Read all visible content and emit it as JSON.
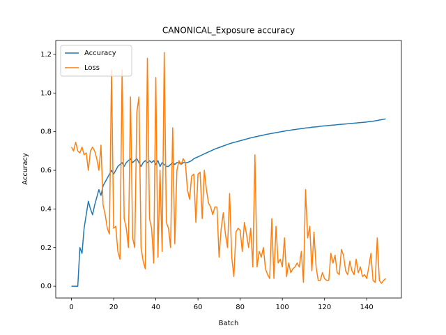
{
  "chart_data": {
    "type": "line",
    "title": "CANONICAL_Exposure accuracy",
    "xlabel": "Batch",
    "ylabel": "Accuracy",
    "x": [
      0,
      1,
      2,
      3,
      4,
      5,
      6,
      7,
      8,
      9,
      10,
      11,
      12,
      13,
      14,
      15,
      16,
      17,
      18,
      19,
      20,
      21,
      22,
      23,
      24,
      25,
      26,
      27,
      28,
      29,
      30,
      31,
      32,
      33,
      34,
      35,
      36,
      37,
      38,
      39,
      40,
      41,
      42,
      43,
      44,
      45,
      46,
      47,
      48,
      49,
      50,
      51,
      52,
      53,
      54,
      55,
      56,
      57,
      58,
      59,
      60,
      61,
      62,
      63,
      64,
      65,
      66,
      67,
      68,
      69,
      70,
      71,
      72,
      73,
      74,
      75,
      76,
      77,
      78,
      79,
      80,
      81,
      82,
      83,
      84,
      85,
      86,
      87,
      88,
      89,
      90,
      91,
      92,
      93,
      94,
      95,
      96,
      97,
      98,
      99,
      100,
      101,
      102,
      103,
      104,
      105,
      106,
      107,
      108,
      109,
      110,
      111,
      112,
      113,
      114,
      115,
      116,
      117,
      118,
      119,
      120,
      121,
      122,
      123,
      124,
      125,
      126,
      127,
      128,
      129,
      130,
      131,
      132,
      133,
      134,
      135,
      136,
      137,
      138,
      139,
      140,
      141,
      142,
      143,
      144,
      145,
      146,
      147,
      148,
      149
    ],
    "series": [
      {
        "name": "Accuracy",
        "color": "#1f77b4",
        "values": [
          0,
          0,
          0,
          0,
          0.2,
          0.17,
          0.3,
          0.37,
          0.44,
          0.4,
          0.37,
          0.42,
          0.46,
          0.5,
          0.47,
          0.52,
          0.54,
          0.56,
          0.58,
          0.6,
          0.58,
          0.6,
          0.62,
          0.63,
          0.64,
          0.62,
          0.64,
          0.65,
          0.66,
          0.64,
          0.65,
          0.66,
          0.64,
          0.62,
          0.64,
          0.65,
          0.64,
          0.65,
          0.64,
          0.65,
          0.63,
          0.65,
          0.62,
          0.64,
          0.63,
          0.62,
          0.62,
          0.63,
          0.64,
          0.63,
          0.64,
          0.64,
          0.63,
          0.64,
          0.64,
          0.64,
          0.645,
          0.65,
          0.66,
          0.665,
          0.67,
          0.675,
          0.68,
          0.685,
          0.69,
          0.695,
          0.7,
          0.705,
          0.71,
          0.714,
          0.718,
          0.722,
          0.726,
          0.73,
          0.734,
          0.738,
          0.741,
          0.744,
          0.747,
          0.75,
          0.753,
          0.756,
          0.759,
          0.762,
          0.765,
          0.768,
          0.77,
          0.773,
          0.775,
          0.778,
          0.78,
          0.782,
          0.785,
          0.787,
          0.789,
          0.791,
          0.793,
          0.795,
          0.797,
          0.799,
          0.801,
          0.803,
          0.805,
          0.806,
          0.808,
          0.81,
          0.811,
          0.813,
          0.814,
          0.816,
          0.817,
          0.819,
          0.82,
          0.821,
          0.823,
          0.824,
          0.825,
          0.826,
          0.828,
          0.829,
          0.83,
          0.831,
          0.832,
          0.833,
          0.834,
          0.835,
          0.836,
          0.837,
          0.838,
          0.839,
          0.84,
          0.841,
          0.842,
          0.843,
          0.844,
          0.845,
          0.846,
          0.847,
          0.848,
          0.849,
          0.85,
          0.852,
          0.853,
          0.854,
          0.856,
          0.858,
          0.86,
          0.862,
          0.864,
          0.866
        ]
      },
      {
        "name": "Loss",
        "color": "#ff7f0e",
        "values": [
          0.72,
          0.7,
          0.745,
          0.7,
          0.69,
          0.72,
          0.68,
          0.69,
          0.6,
          0.7,
          0.72,
          0.7,
          0.66,
          0.6,
          0.73,
          0.42,
          0.37,
          0.3,
          0.27,
          1.12,
          0.3,
          0.31,
          0.18,
          0.14,
          1.12,
          0.35,
          0.3,
          0.2,
          0.98,
          0.25,
          0.2,
          0.9,
          0.98,
          0.2,
          0.13,
          0.09,
          1.18,
          0.35,
          0.3,
          0.12,
          1.08,
          0.15,
          0.6,
          0.18,
          1.21,
          0.33,
          0.3,
          0.2,
          0.82,
          0.22,
          0.6,
          0.65,
          0.63,
          0.66,
          0.64,
          0.5,
          0.45,
          0.57,
          0.58,
          0.33,
          0.58,
          0.59,
          0.35,
          0.6,
          0.5,
          0.43,
          0.41,
          0.37,
          0.41,
          0.41,
          0.15,
          0.3,
          0.38,
          0.27,
          0.2,
          0.48,
          0.15,
          0.05,
          0.28,
          0.3,
          0.29,
          0.18,
          0.33,
          0.27,
          0.2,
          0.3,
          0.1,
          0.68,
          0.1,
          0.18,
          0.15,
          0.2,
          0.09,
          0.06,
          0.04,
          0.35,
          0.04,
          0.31,
          0.12,
          0.14,
          0.1,
          0.25,
          0.05,
          0.12,
          0.07,
          0.09,
          0.1,
          0.12,
          0.1,
          0.18,
          0.02,
          0.5,
          0.25,
          0.31,
          0.08,
          0.28,
          0.1,
          0.03,
          0.03,
          0.07,
          0.04,
          0.03,
          0.03,
          0.17,
          0.12,
          0.16,
          0.07,
          0.06,
          0.19,
          0.16,
          0.08,
          0.06,
          0.13,
          0.08,
          0.06,
          0.14,
          0.07,
          0.1,
          0.05,
          0.06,
          0.04,
          0.1,
          0.17,
          0.03,
          0.02,
          0.25,
          0.03,
          0.015,
          0.03,
          0.04
        ]
      }
    ],
    "xlim": [
      -7.45,
      156.45
    ],
    "ylim": [
      -0.061,
      1.272
    ],
    "xticks": [
      0,
      20,
      40,
      60,
      80,
      100,
      120,
      140
    ],
    "yticks": [
      {
        "value": 0,
        "label": "0.0"
      },
      0.2,
      0.4,
      0.6,
      0.8,
      {
        "value": 1,
        "label": "1.0"
      },
      1.2
    ],
    "legend": "upper left"
  }
}
